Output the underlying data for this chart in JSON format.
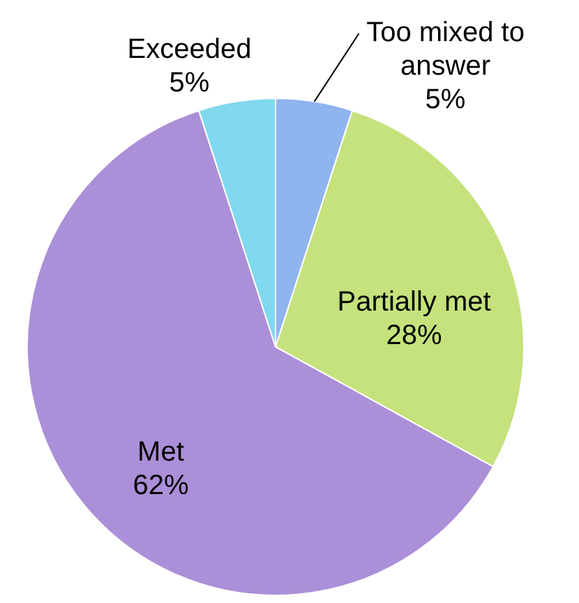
{
  "chart_data": {
    "type": "pie",
    "categories": [
      "Too mixed to answer",
      "Partially met",
      "Met",
      "Exceeded"
    ],
    "values": [
      5,
      28,
      62,
      5
    ],
    "colors": [
      "#8fb4ee",
      "#c5e27d",
      "#ab8fd8",
      "#80d9ee"
    ],
    "value_labels": [
      "5%",
      "28%",
      "62%",
      "5%"
    ],
    "legend": false
  }
}
